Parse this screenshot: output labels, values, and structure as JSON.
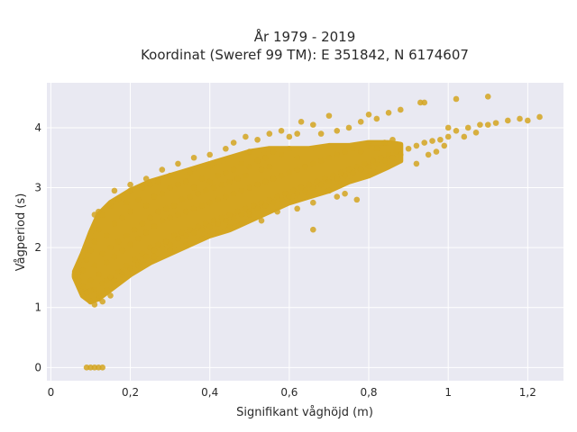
{
  "chart_data": {
    "type": "scatter",
    "title": [
      "År 1979 - 2019",
      "Koordinat (Sweref 99 TM): E 351842, N 6174607"
    ],
    "xlabel": "Signifikant våghöjd (m)",
    "ylabel": "Vågperiod (s)",
    "xlim": [
      -0.01,
      1.29
    ],
    "ylim": [
      -0.22,
      4.75
    ],
    "x_ticks": [
      0,
      0.2,
      0.4,
      0.6,
      0.8,
      1,
      1.2
    ],
    "x_tick_labels": [
      "0",
      "0,2",
      "0,4",
      "0,6",
      "0,8",
      "1",
      "1,2"
    ],
    "y_ticks": [
      0,
      1,
      2,
      3,
      4
    ],
    "y_tick_labels": [
      "0",
      "1",
      "2",
      "3",
      "4"
    ],
    "grid": true,
    "colors": {
      "marker": "#D4A520",
      "plot_bg": "#E9E9F2",
      "grid": "#FFFFFF"
    },
    "points": [
      [
        0.06,
        1.52
      ],
      [
        0.07,
        1.58
      ],
      [
        0.08,
        1.35
      ],
      [
        0.08,
        1.62
      ],
      [
        0.09,
        1.25
      ],
      [
        0.09,
        1.8
      ],
      [
        0.1,
        1.1
      ],
      [
        0.1,
        1.45
      ],
      [
        0.1,
        1.95
      ],
      [
        0.11,
        1.3
      ],
      [
        0.11,
        1.7
      ],
      [
        0.11,
        2.1
      ],
      [
        0.12,
        1.15
      ],
      [
        0.12,
        1.55
      ],
      [
        0.12,
        2.3
      ],
      [
        0.13,
        1.4
      ],
      [
        0.13,
        1.9
      ],
      [
        0.13,
        2.55
      ],
      [
        0.14,
        1.3
      ],
      [
        0.14,
        1.75
      ],
      [
        0.14,
        2.2
      ],
      [
        0.15,
        1.5
      ],
      [
        0.15,
        2.0
      ],
      [
        0.15,
        2.7
      ],
      [
        0.16,
        1.45
      ],
      [
        0.16,
        1.85
      ],
      [
        0.16,
        2.4
      ],
      [
        0.17,
        1.6
      ],
      [
        0.17,
        2.1
      ],
      [
        0.17,
        2.8
      ],
      [
        0.18,
        1.55
      ],
      [
        0.18,
        1.95
      ],
      [
        0.18,
        2.5
      ],
      [
        0.19,
        1.7
      ],
      [
        0.19,
        2.2
      ],
      [
        0.19,
        2.75
      ],
      [
        0.2,
        1.65
      ],
      [
        0.2,
        2.05
      ],
      [
        0.2,
        2.6
      ],
      [
        0.2,
        2.95
      ],
      [
        0.21,
        1.8
      ],
      [
        0.21,
        2.3
      ],
      [
        0.22,
        1.75
      ],
      [
        0.22,
        2.15
      ],
      [
        0.22,
        2.8
      ],
      [
        0.23,
        1.9
      ],
      [
        0.23,
        2.4
      ],
      [
        0.23,
        3.0
      ],
      [
        0.24,
        1.85
      ],
      [
        0.24,
        2.25
      ],
      [
        0.24,
        2.7
      ],
      [
        0.25,
        2.0
      ],
      [
        0.25,
        2.5
      ],
      [
        0.25,
        3.05
      ],
      [
        0.26,
        1.95
      ],
      [
        0.26,
        2.35
      ],
      [
        0.26,
        2.85
      ],
      [
        0.27,
        2.05
      ],
      [
        0.27,
        2.6
      ],
      [
        0.27,
        3.1
      ],
      [
        0.28,
        2.0
      ],
      [
        0.28,
        2.45
      ],
      [
        0.28,
        2.9
      ],
      [
        0.29,
        2.1
      ],
      [
        0.29,
        2.65
      ],
      [
        0.3,
        2.05
      ],
      [
        0.3,
        2.5
      ],
      [
        0.3,
        3.0
      ],
      [
        0.3,
        3.2
      ],
      [
        0.31,
        2.2
      ],
      [
        0.31,
        2.7
      ],
      [
        0.32,
        2.15
      ],
      [
        0.32,
        2.55
      ],
      [
        0.32,
        3.05
      ],
      [
        0.33,
        2.25
      ],
      [
        0.33,
        2.8
      ],
      [
        0.34,
        2.2
      ],
      [
        0.34,
        2.6
      ],
      [
        0.34,
        3.1
      ],
      [
        0.35,
        2.3
      ],
      [
        0.35,
        2.85
      ],
      [
        0.35,
        3.25
      ],
      [
        0.36,
        2.25
      ],
      [
        0.36,
        2.65
      ],
      [
        0.36,
        3.0
      ],
      [
        0.37,
        2.35
      ],
      [
        0.37,
        2.9
      ],
      [
        0.38,
        2.3
      ],
      [
        0.38,
        2.7
      ],
      [
        0.38,
        3.15
      ],
      [
        0.39,
        2.4
      ],
      [
        0.39,
        2.95
      ],
      [
        0.4,
        2.35
      ],
      [
        0.4,
        2.75
      ],
      [
        0.4,
        3.1
      ],
      [
        0.4,
        3.35
      ],
      [
        0.41,
        2.45
      ],
      [
        0.41,
        3.0
      ],
      [
        0.42,
        2.4
      ],
      [
        0.42,
        2.8
      ],
      [
        0.42,
        3.2
      ],
      [
        0.43,
        2.5
      ],
      [
        0.43,
        3.05
      ],
      [
        0.44,
        2.45
      ],
      [
        0.44,
        2.85
      ],
      [
        0.44,
        3.25
      ],
      [
        0.45,
        2.55
      ],
      [
        0.45,
        3.1
      ],
      [
        0.46,
        2.5
      ],
      [
        0.46,
        2.9
      ],
      [
        0.46,
        3.3
      ],
      [
        0.47,
        2.6
      ],
      [
        0.47,
        3.15
      ],
      [
        0.48,
        2.55
      ],
      [
        0.48,
        2.95
      ],
      [
        0.48,
        3.4
      ],
      [
        0.49,
        2.65
      ],
      [
        0.49,
        3.2
      ],
      [
        0.5,
        2.6
      ],
      [
        0.5,
        3.0
      ],
      [
        0.5,
        3.35
      ],
      [
        0.5,
        3.6
      ],
      [
        0.51,
        2.7
      ],
      [
        0.52,
        2.65
      ],
      [
        0.52,
        3.05
      ],
      [
        0.52,
        3.45
      ],
      [
        0.53,
        2.75
      ],
      [
        0.53,
        3.3
      ],
      [
        0.54,
        2.7
      ],
      [
        0.54,
        3.1
      ],
      [
        0.54,
        3.5
      ],
      [
        0.55,
        2.8
      ],
      [
        0.55,
        3.35
      ],
      [
        0.56,
        2.75
      ],
      [
        0.56,
        3.15
      ],
      [
        0.56,
        3.6
      ],
      [
        0.57,
        2.85
      ],
      [
        0.58,
        2.8
      ],
      [
        0.58,
        3.2
      ],
      [
        0.58,
        3.55
      ],
      [
        0.59,
        2.9
      ],
      [
        0.6,
        2.85
      ],
      [
        0.6,
        3.25
      ],
      [
        0.6,
        3.65
      ],
      [
        0.61,
        2.95
      ],
      [
        0.62,
        2.9
      ],
      [
        0.62,
        3.3
      ],
      [
        0.62,
        3.5
      ],
      [
        0.63,
        3.0
      ],
      [
        0.64,
        2.95
      ],
      [
        0.64,
        3.35
      ],
      [
        0.65,
        3.05
      ],
      [
        0.66,
        3.0
      ],
      [
        0.66,
        3.4
      ],
      [
        0.67,
        3.1
      ],
      [
        0.68,
        3.05
      ],
      [
        0.68,
        3.45
      ],
      [
        0.69,
        3.15
      ],
      [
        0.7,
        3.1
      ],
      [
        0.7,
        3.5
      ],
      [
        0.71,
        3.2
      ],
      [
        0.72,
        3.15
      ],
      [
        0.72,
        3.55
      ],
      [
        0.73,
        3.25
      ],
      [
        0.74,
        3.2
      ],
      [
        0.74,
        3.6
      ],
      [
        0.75,
        3.3
      ],
      [
        0.76,
        3.25
      ],
      [
        0.76,
        3.65
      ],
      [
        0.77,
        3.35
      ],
      [
        0.78,
        3.3
      ],
      [
        0.78,
        3.6
      ],
      [
        0.79,
        3.4
      ],
      [
        0.8,
        3.35
      ],
      [
        0.8,
        3.7
      ],
      [
        0.81,
        3.45
      ],
      [
        0.82,
        3.4
      ],
      [
        0.82,
        3.65
      ],
      [
        0.83,
        3.5
      ],
      [
        0.84,
        3.45
      ],
      [
        0.84,
        3.75
      ],
      [
        0.85,
        3.55
      ],
      [
        0.86,
        3.5
      ],
      [
        0.86,
        3.8
      ],
      [
        0.87,
        3.6
      ],
      [
        0.88,
        3.55
      ],
      [
        0.9,
        3.65
      ],
      [
        0.92,
        3.7
      ],
      [
        0.94,
        3.75
      ],
      [
        0.96,
        3.78
      ],
      [
        0.98,
        3.8
      ],
      [
        1.0,
        3.85
      ],
      [
        1.02,
        3.95
      ],
      [
        1.05,
        4.0
      ],
      [
        1.08,
        4.05
      ],
      [
        1.0,
        4.0
      ],
      [
        1.1,
        4.05
      ],
      [
        1.12,
        4.08
      ],
      [
        1.15,
        4.12
      ],
      [
        1.18,
        4.15
      ],
      [
        1.2,
        4.12
      ],
      [
        1.23,
        4.18
      ],
      [
        1.1,
        4.52
      ],
      [
        1.02,
        4.48
      ],
      [
        0.93,
        4.42
      ],
      [
        0.94,
        4.42
      ],
      [
        0.88,
        4.3
      ],
      [
        0.85,
        4.25
      ],
      [
        0.82,
        4.15
      ],
      [
        0.8,
        4.22
      ],
      [
        0.78,
        4.1
      ],
      [
        0.75,
        4.0
      ],
      [
        0.72,
        3.95
      ],
      [
        0.7,
        4.2
      ],
      [
        0.68,
        3.9
      ],
      [
        0.66,
        4.05
      ],
      [
        0.63,
        4.1
      ],
      [
        0.62,
        3.9
      ],
      [
        0.6,
        3.85
      ],
      [
        0.58,
        3.95
      ],
      [
        0.55,
        3.9
      ],
      [
        0.52,
        3.8
      ],
      [
        0.49,
        3.85
      ],
      [
        0.46,
        3.75
      ],
      [
        0.44,
        3.65
      ],
      [
        0.4,
        3.55
      ],
      [
        0.36,
        3.5
      ],
      [
        0.32,
        3.4
      ],
      [
        0.28,
        3.3
      ],
      [
        0.24,
        3.15
      ],
      [
        0.2,
        3.05
      ],
      [
        0.16,
        2.95
      ],
      [
        0.12,
        2.6
      ],
      [
        0.11,
        2.55
      ],
      [
        0.7,
        2.95
      ],
      [
        0.72,
        2.85
      ],
      [
        0.74,
        2.9
      ],
      [
        0.77,
        2.8
      ],
      [
        0.66,
        2.75
      ],
      [
        0.62,
        2.65
      ],
      [
        0.57,
        2.6
      ],
      [
        0.53,
        2.45
      ],
      [
        0.5,
        2.55
      ],
      [
        0.48,
        2.4
      ],
      [
        0.45,
        2.35
      ],
      [
        0.42,
        2.25
      ],
      [
        0.38,
        2.15
      ],
      [
        0.34,
        2.05
      ],
      [
        0.3,
        1.95
      ],
      [
        0.26,
        1.85
      ],
      [
        0.22,
        1.7
      ],
      [
        0.18,
        1.6
      ],
      [
        0.14,
        1.45
      ],
      [
        0.12,
        1.2
      ],
      [
        0.11,
        1.05
      ],
      [
        0.13,
        1.1
      ],
      [
        0.15,
        1.2
      ],
      [
        0.09,
        1.25
      ],
      [
        0.07,
        1.45
      ],
      [
        0.06,
        1.55
      ],
      [
        0.1,
        1.28
      ],
      [
        0.1,
        0.0
      ],
      [
        0.11,
        0.0
      ],
      [
        0.12,
        0.0
      ],
      [
        0.13,
        0.0
      ],
      [
        0.09,
        0.0
      ],
      [
        0.66,
        2.3
      ],
      [
        0.92,
        3.4
      ],
      [
        0.95,
        3.55
      ],
      [
        0.97,
        3.6
      ],
      [
        0.99,
        3.7
      ],
      [
        1.04,
        3.85
      ],
      [
        1.07,
        3.92
      ]
    ]
  }
}
